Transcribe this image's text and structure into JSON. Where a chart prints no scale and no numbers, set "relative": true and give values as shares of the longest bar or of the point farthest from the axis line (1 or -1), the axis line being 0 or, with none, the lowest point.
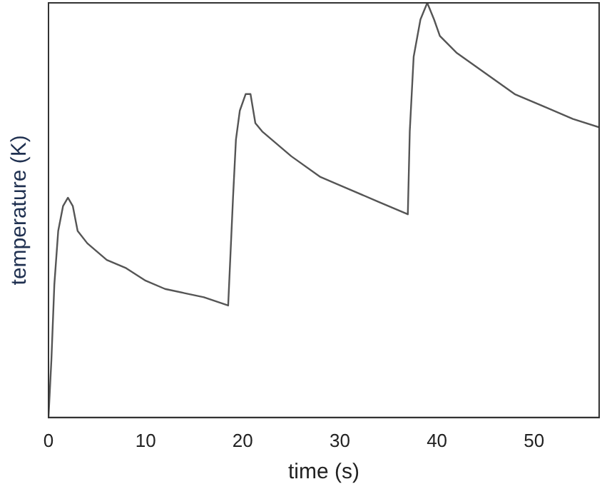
{
  "chart_data": {
    "type": "line",
    "xlabel": "time (s)",
    "ylabel": "temperature (K)",
    "relative": true,
    "xlim": [
      0,
      56.7
    ],
    "xticks": [
      0,
      10,
      20,
      30,
      40,
      50
    ],
    "grid": false,
    "legend": false,
    "marker": "none",
    "line_style": "solid",
    "tick_labels": "x",
    "x": [
      0,
      0.3,
      0.6,
      1,
      1.5,
      2,
      2.5,
      3,
      4,
      6,
      8,
      10,
      12,
      14,
      16,
      18.5,
      19,
      19.3,
      19.7,
      20.3,
      20.8,
      21.3,
      22,
      25,
      28,
      31,
      34,
      37,
      37.2,
      37.6,
      38.3,
      39,
      39.7,
      40.3,
      42,
      45,
      48,
      51,
      54,
      56.7
    ],
    "series": [
      {
        "color": "#555555",
        "values": [
          0,
          0.14,
          0.32,
          0.45,
          0.51,
          0.53,
          0.51,
          0.45,
          0.42,
          0.38,
          0.36,
          0.33,
          0.31,
          0.3,
          0.29,
          0.27,
          0.53,
          0.67,
          0.74,
          0.78,
          0.78,
          0.71,
          0.69,
          0.63,
          0.58,
          0.55,
          0.52,
          0.49,
          0.69,
          0.87,
          0.96,
          1,
          0.96,
          0.92,
          0.88,
          0.83,
          0.78,
          0.75,
          0.72,
          0.7
        ]
      }
    ]
  }
}
